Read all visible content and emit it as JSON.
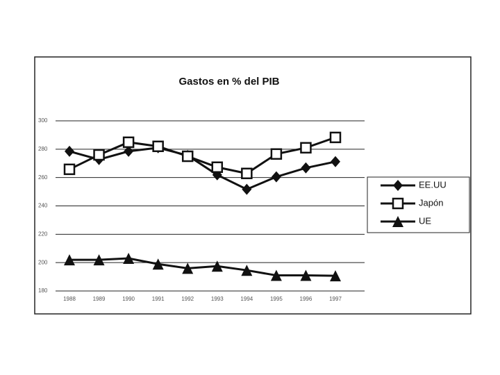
{
  "chart_data": {
    "type": "line",
    "title": "Gastos en % del PIB",
    "categories": [
      "1988",
      "1989",
      "1990",
      "1991",
      "1992",
      "1993",
      "1994",
      "1995",
      "1996",
      "1997"
    ],
    "series": [
      {
        "name": "EE.UU",
        "color": "#111111",
        "marker": "diamond",
        "values": [
          278.5,
          272.7,
          278.5,
          281,
          275.6,
          261.9,
          251.7,
          260.5,
          266.8,
          271.2
        ]
      },
      {
        "name": "Japón",
        "color": "#111111",
        "marker": "square",
        "values": [
          265.8,
          276,
          284.9,
          282,
          275,
          267.3,
          262.9,
          276.6,
          281,
          288.3
        ]
      },
      {
        "name": "UE",
        "color": "#111111",
        "marker": "triangle",
        "values": [
          202,
          202,
          203,
          199,
          196,
          197.5,
          194.6,
          191,
          191,
          190.7
        ]
      }
    ],
    "ylim": [
      180,
      300
    ],
    "yticks": [
      180,
      200,
      220,
      240,
      260,
      280,
      300
    ],
    "grid": true,
    "legend": "right"
  }
}
